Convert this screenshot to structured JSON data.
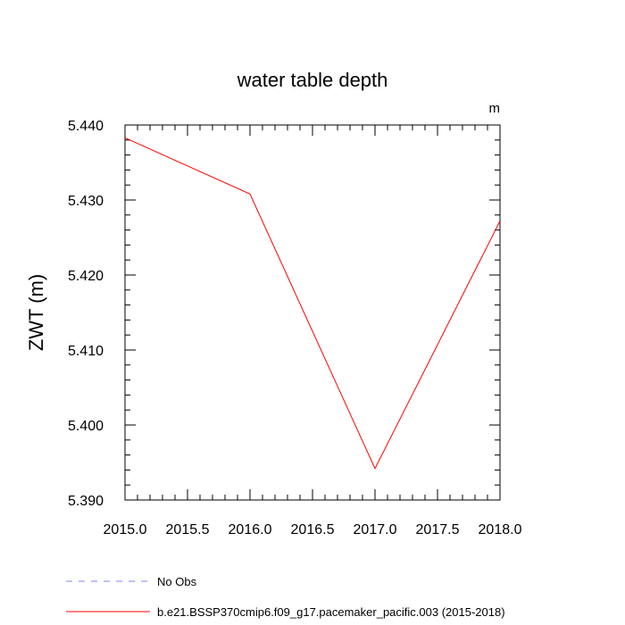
{
  "chart_data": {
    "type": "line",
    "title": "water table depth",
    "units_label": "m",
    "ylabel": "ZWT  (m)",
    "xlabel": "",
    "xlim": [
      2015.0,
      2018.0
    ],
    "ylim": [
      5.39,
      5.44
    ],
    "xticks": [
      2015.0,
      2015.5,
      2016.0,
      2016.5,
      2017.0,
      2017.5,
      2018.0
    ],
    "xtick_labels": [
      "2015.0",
      "2015.5",
      "2016.0",
      "2016.5",
      "2017.0",
      "2017.5",
      "2018.0"
    ],
    "yticks": [
      5.39,
      5.4,
      5.41,
      5.42,
      5.43,
      5.44
    ],
    "ytick_labels": [
      "5.390",
      "5.400",
      "5.410",
      "5.420",
      "5.430",
      "5.440"
    ],
    "grid": false,
    "legend_position": "bottom-left",
    "series": [
      {
        "name": "No Obs",
        "color": "#8080ff",
        "dash": "dashed",
        "x": [],
        "y": []
      },
      {
        "name": "b.e21.BSSP370cmip6.f09_g17.pacemaker_pacific.003 (2015-2018)",
        "color": "#ff0000",
        "dash": "solid",
        "x": [
          2015,
          2016,
          2017,
          2018
        ],
        "y": [
          5.4383,
          5.4308,
          5.3942,
          5.4272
        ]
      }
    ]
  }
}
